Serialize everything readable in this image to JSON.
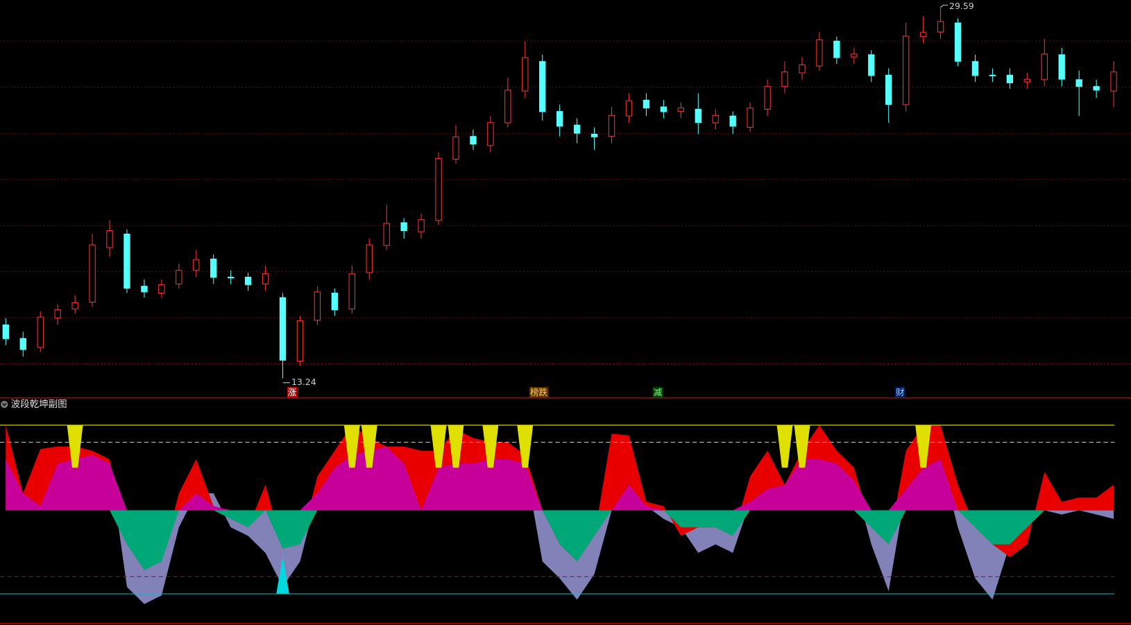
{
  "chart_data": [
    {
      "type": "candlestick",
      "open": [
        15.6,
        15.0,
        14.6,
        15.9,
        16.3,
        16.6,
        19.0,
        19.6,
        17.3,
        17.0,
        17.4,
        18.0,
        18.5,
        17.7,
        17.7,
        17.4,
        16.8,
        14.0,
        15.8,
        17.0,
        16.3,
        17.9,
        19.1,
        20.1,
        19.7,
        20.2,
        22.9,
        23.9,
        23.5,
        24.5,
        25.9,
        27.2,
        25.0,
        24.4,
        24.0,
        23.9,
        24.8,
        25.5,
        25.2,
        25.0,
        25.1,
        24.5,
        24.8,
        24.3,
        25.1,
        26.1,
        26.7,
        27.0,
        28.1,
        27.4,
        27.5,
        26.6,
        25.3,
        28.3,
        28.5,
        28.9,
        27.2,
        26.6,
        26.6,
        26.3,
        26.4,
        27.5,
        26.4,
        26.1,
        25.9
      ],
      "high": [
        15.9,
        15.3,
        16.2,
        16.5,
        16.9,
        19.6,
        20.2,
        19.8,
        17.6,
        17.6,
        18.3,
        18.9,
        18.7,
        18.0,
        17.9,
        18.2,
        17.0,
        16.0,
        17.3,
        17.2,
        18.2,
        19.4,
        20.9,
        20.3,
        20.5,
        23.2,
        24.4,
        24.2,
        24.8,
        26.5,
        28.1,
        27.5,
        25.3,
        24.7,
        24.3,
        25.2,
        25.8,
        25.8,
        25.5,
        25.4,
        25.8,
        25.1,
        25.0,
        25.4,
        26.4,
        27.2,
        27.4,
        28.5,
        28.3,
        27.8,
        27.7,
        26.9,
        28.9,
        29.2,
        29.59,
        29.1,
        27.5,
        26.9,
        26.9,
        26.7,
        28.2,
        27.8,
        26.8,
        26.4,
        27.2
      ],
      "low": [
        14.7,
        14.2,
        14.4,
        15.6,
        16.1,
        16.4,
        18.6,
        17.0,
        16.8,
        16.8,
        17.2,
        17.7,
        17.4,
        17.4,
        17.1,
        17.1,
        13.24,
        13.8,
        15.6,
        16.0,
        16.1,
        17.6,
        18.9,
        19.4,
        19.4,
        20.0,
        22.7,
        23.3,
        23.2,
        24.3,
        25.6,
        24.6,
        23.9,
        23.6,
        23.3,
        23.6,
        24.5,
        24.8,
        24.7,
        24.7,
        24.0,
        24.2,
        24.0,
        24.1,
        24.8,
        25.8,
        26.4,
        26.8,
        27.1,
        27.1,
        26.3,
        24.5,
        25.0,
        28.0,
        28.2,
        27.0,
        26.3,
        26.3,
        26.0,
        26.0,
        26.1,
        26.1,
        24.8,
        25.6,
        25.2
      ],
      "close": [
        14.99,
        14.51,
        15.94,
        16.26,
        16.57,
        19.12,
        19.75,
        17.21,
        17.05,
        17.37,
        18.0,
        18.48,
        17.69,
        17.69,
        17.37,
        17.85,
        14.04,
        15.78,
        17.05,
        16.26,
        17.85,
        19.12,
        20.07,
        19.75,
        20.23,
        22.93,
        23.88,
        23.56,
        24.51,
        25.94,
        27.37,
        24.99,
        24.35,
        24.04,
        23.88,
        24.83,
        25.47,
        25.15,
        24.99,
        25.15,
        24.51,
        24.83,
        24.35,
        25.15,
        26.1,
        26.74,
        27.05,
        28.16,
        27.37,
        27.53,
        26.58,
        25.31,
        28.32,
        28.48,
        28.96,
        27.21,
        26.58,
        26.58,
        26.26,
        26.42,
        27.53,
        26.42,
        26.1,
        25.94,
        26.74
      ],
      "up_color": "#ff3232",
      "down_color": "#54ffff",
      "grid_color": "#8b0000",
      "ylim": [
        12.38,
        29.91
      ],
      "gridlines": [
        28.1,
        26.07,
        24.04,
        22.0,
        19.97,
        17.94,
        15.91,
        13.88
      ],
      "markers": [
        "涨",
        "榜跌",
        "减",
        "财"
      ]
    },
    {
      "type": "oscillator",
      "title": "波段乾坤副图",
      "ylim": [
        -133,
        132
      ],
      "fast": {
        "color": "#e80000",
        "values": [
          100,
          20,
          72,
          75,
          75,
          70,
          60,
          -40,
          -70,
          -60,
          20,
          60,
          5,
          -10,
          -20,
          30,
          -45,
          -40,
          40,
          70,
          100,
          85,
          75,
          75,
          70,
          70,
          95,
          85,
          80,
          80,
          65,
          0,
          -40,
          -60,
          -30,
          90,
          88,
          10,
          5,
          -30,
          -20,
          -20,
          -30,
          40,
          70,
          30,
          70,
          100,
          70,
          50,
          -20,
          -40,
          70,
          100,
          100,
          30,
          -20,
          -40,
          -55,
          -40,
          45,
          10,
          15,
          15,
          30
        ]
      },
      "slow": {
        "color": "#8282b8",
        "values": [
          60,
          20,
          5,
          55,
          60,
          65,
          55,
          -90,
          -110,
          -100,
          -20,
          20,
          20,
          -20,
          -30,
          -50,
          -90,
          -60,
          20,
          50,
          65,
          70,
          75,
          55,
          0,
          50,
          55,
          55,
          60,
          60,
          55,
          -60,
          -80,
          -105,
          -75,
          0,
          30,
          5,
          -10,
          -20,
          -50,
          -40,
          -50,
          10,
          25,
          30,
          60,
          60,
          55,
          35,
          -40,
          -95,
          25,
          50,
          60,
          -20,
          -80,
          -105,
          -40,
          -20,
          0,
          -5,
          0,
          -5,
          -10
        ]
      },
      "positive_color": "#c8009a",
      "negative_color": "#00a878",
      "top_signals": [
        4,
        20,
        21,
        25,
        26,
        28,
        30,
        45,
        46,
        53
      ],
      "top_signal_color": "#e0e000",
      "bottom_signals": [
        16
      ],
      "bottom_signal_color": "#00d8e0",
      "levels": [
        100,
        80,
        -78,
        -98
      ],
      "level_colors": [
        "#e6e600",
        "#c8c8c8",
        "#c00000",
        "#00c0c8"
      ]
    }
  ]
}
